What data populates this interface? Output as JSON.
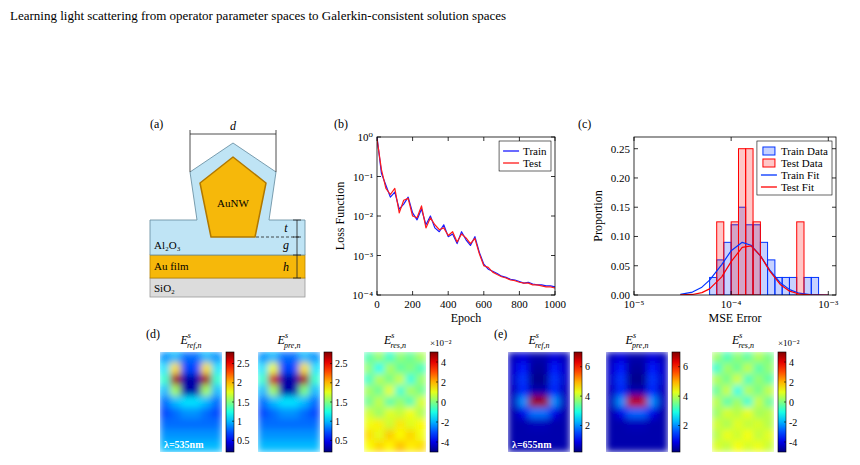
{
  "header": {
    "title": "Learning light scattering from operator parameter spaces to Galerkin-consistent solution spaces"
  },
  "panel_labels": [
    "(a)",
    "(b)",
    "(c)",
    "(d)",
    "(e)"
  ],
  "schematic": {
    "labels": {
      "d": "d",
      "nanowire": "AuNW",
      "t": "t",
      "g": "g",
      "spacer": "Al₂O₃",
      "h": "h",
      "film": "Au film",
      "substrate": "SiO₂"
    }
  },
  "chart_data": [
    {
      "type": "line",
      "xlabel": "Epoch",
      "ylabel": "Loss Function",
      "x": [
        0,
        25,
        50,
        75,
        100,
        125,
        150,
        175,
        200,
        225,
        250,
        275,
        300,
        325,
        350,
        375,
        400,
        425,
        450,
        475,
        500,
        525,
        550,
        575,
        600,
        625,
        650,
        675,
        700,
        725,
        750,
        775,
        800,
        825,
        850,
        875,
        900,
        925,
        950,
        975,
        1000
      ],
      "series": [
        {
          "name": "Train",
          "color": "#1a1aff",
          "values": [
            1,
            0.12,
            0.06,
            0.03,
            0.04,
            0.015,
            0.02,
            0.03,
            0.012,
            0.008,
            0.015,
            0.006,
            0.01,
            0.005,
            0.004,
            0.006,
            0.003,
            0.0035,
            0.002,
            0.004,
            0.0025,
            0.0018,
            0.003,
            0.0012,
            0.0006,
            0.00045,
            0.0004,
            0.00035,
            0.0003,
            0.00028,
            0.00025,
            0.00024,
            0.00022,
            0.0002,
            0.00021,
            0.00019,
            0.00018,
            0.00018,
            0.00017,
            0.00017,
            0.00016
          ]
        },
        {
          "name": "Test",
          "color": "#ff1a1a",
          "values": [
            0.9,
            0.15,
            0.05,
            0.035,
            0.05,
            0.012,
            0.025,
            0.028,
            0.01,
            0.009,
            0.018,
            0.005,
            0.009,
            0.006,
            0.0045,
            0.005,
            0.0032,
            0.004,
            0.0022,
            0.0035,
            0.0028,
            0.002,
            0.0027,
            0.0011,
            0.00055,
            0.0005,
            0.00038,
            0.00033,
            0.00029,
            0.00027,
            0.00024,
            0.00023,
            0.00021,
            0.0002,
            0.0002,
            0.00018,
            0.00018,
            0.00017,
            0.00016,
            0.00016,
            0.00015
          ]
        }
      ],
      "xlim": [
        0,
        1000
      ],
      "xticks": [
        0,
        200,
        400,
        600,
        800,
        1000
      ],
      "ylim": [
        0.0001,
        1
      ],
      "yticks": [
        {
          "value": 0.0001,
          "label": "10⁻⁴"
        },
        {
          "value": 0.001,
          "label": "10⁻³"
        },
        {
          "value": 0.01,
          "label": "10⁻²"
        },
        {
          "value": 0.1,
          "label": "10⁻¹"
        },
        {
          "value": 1,
          "label": "10⁰"
        }
      ],
      "log": "y",
      "grid": false,
      "legend": "top-right"
    },
    {
      "type": "histogram",
      "xlabel": "MSE Error",
      "ylabel": "Proportion",
      "bins": [
        6e-05,
        7.1e-05,
        8.4e-05,
        0.0001,
        0.000119,
        0.000141,
        0.000168,
        0.0002,
        0.000237,
        0.000282,
        0.000335,
        0.000398,
        0.000473,
        0.000562,
        0.000668,
        0.000794,
        0.000944
      ],
      "series": [
        {
          "name": "Train Data",
          "type": "bar",
          "color": "#0033ff",
          "values": [
            0.03,
            0.06,
            0.09,
            0.12,
            0.15,
            0.12,
            0.12,
            0.09,
            0.06,
            0.03,
            0.03,
            0.03,
            0,
            0.03,
            0.03,
            0
          ]
        },
        {
          "name": "Test Data",
          "type": "bar",
          "color": "#ff0000",
          "values": [
            0,
            0.125,
            0,
            0.125,
            0.25,
            0.25,
            0.125,
            0,
            0,
            0,
            0,
            0,
            0.125,
            0,
            0,
            0
          ]
        },
        {
          "name": "Train Fit",
          "type": "line",
          "color": "#0033ff",
          "x": [
            3e-05,
            4e-05,
            5e-05,
            6e-05,
            8e-05,
            0.0001,
            0.00013,
            0.00016,
            0.0002,
            0.00025,
            0.00032,
            0.0004,
            0.0005,
            0.00065,
            0.0008,
            0.001
          ],
          "values": [
            0.0011,
            0.005,
            0.0134,
            0.0254,
            0.052,
            0.0756,
            0.09,
            0.085,
            0.0668,
            0.0424,
            0.021,
            0.0092,
            0.0031,
            0.0007,
            0.0002,
            0
          ]
        },
        {
          "name": "Test Fit",
          "type": "line",
          "color": "#ff0000",
          "x": [
            3e-05,
            4e-05,
            5e-05,
            6e-05,
            8e-05,
            0.0001,
            0.00013,
            0.00016,
            0.0002,
            0.00025,
            0.00032,
            0.0004,
            0.0005,
            0.00065,
            0.0008,
            0.001
          ],
          "values": [
            0.0001,
            0.0009,
            0.004,
            0.0104,
            0.031,
            0.057,
            0.0814,
            0.084,
            0.0673,
            0.0408,
            0.018,
            0.0066,
            0.0017,
            0.0003,
            0,
            0
          ]
        }
      ],
      "xlim": [
        1e-05,
        0.0012
      ],
      "xticks": [
        {
          "value": 1e-05,
          "label": "10⁻⁵"
        },
        {
          "value": 0.0001,
          "label": "10⁻⁴"
        },
        {
          "value": 0.001,
          "label": "10⁻³"
        }
      ],
      "ylim": [
        0,
        0.27
      ],
      "yticks": [
        {
          "value": 0,
          "label": "0.00"
        },
        0.05,
        {
          "value": 0.1,
          "label": "0.10"
        },
        0.15,
        {
          "value": 0.2,
          "label": "0.20"
        },
        0.25
      ],
      "log": "x",
      "grid": false,
      "legend": "top-right"
    }
  ],
  "field_maps": [
    {
      "wavelength_label": "λ=535nm",
      "maps": [
        {
          "title": {
            "base": "E",
            "sup": "s",
            "sub": "ref,n"
          },
          "cells": [
            [
              0.9,
              1.0,
              0.8,
              0.8,
              1.0,
              0.9
            ],
            [
              1.1,
              1.9,
              0.7,
              0.7,
              1.9,
              1.1
            ],
            [
              1.3,
              2.7,
              0.3,
              0.3,
              2.7,
              1.3
            ],
            [
              1.0,
              1.6,
              0.3,
              0.3,
              1.6,
              1.0
            ],
            [
              0.8,
              1.0,
              1.1,
              1.1,
              1.0,
              0.8
            ],
            [
              0.7,
              0.8,
              0.9,
              0.9,
              0.8,
              0.7
            ],
            [
              0.8,
              0.8,
              0.8,
              0.8,
              0.8,
              0.8
            ],
            [
              0.9,
              0.9,
              0.9,
              0.9,
              0.9,
              0.9
            ],
            [
              1.0,
              1.0,
              1.0,
              1.0,
              1.0,
              1.0
            ]
          ],
          "colorbar": {
            "range": [
              0.2,
              2.8
            ],
            "ticks": [
              0.5,
              1,
              1.5,
              2,
              2.5
            ]
          }
        },
        {
          "title": {
            "base": "E",
            "sup": "s",
            "sub": "pre,n"
          },
          "cells": [
            [
              0.9,
              1.0,
              0.8,
              0.8,
              1.0,
              0.9
            ],
            [
              1.1,
              1.8,
              0.7,
              0.7,
              1.9,
              1.1
            ],
            [
              1.3,
              2.6,
              0.3,
              0.3,
              2.7,
              1.3
            ],
            [
              1.0,
              1.6,
              0.3,
              0.3,
              1.5,
              1.0
            ],
            [
              0.8,
              1.0,
              1.1,
              1.1,
              1.0,
              0.8
            ],
            [
              0.7,
              0.8,
              0.9,
              0.9,
              0.8,
              0.7
            ],
            [
              0.8,
              0.8,
              0.8,
              0.8,
              0.8,
              0.8
            ],
            [
              0.9,
              0.9,
              0.9,
              0.9,
              0.9,
              0.9
            ],
            [
              1.0,
              1.0,
              1.0,
              1.0,
              1.0,
              1.0
            ]
          ],
          "colorbar": {
            "range": [
              0.2,
              2.8
            ],
            "ticks": [
              0.5,
              1,
              1.5,
              2,
              2.5
            ]
          }
        },
        {
          "title": {
            "base": "E",
            "sup": "s",
            "sub": "res,n"
          },
          "cells": [
            [
              -0.5,
              0.3,
              -0.8,
              0.2,
              -0.3,
              0.4
            ],
            [
              0.2,
              -1.2,
              0.5,
              -0.4,
              0.1,
              -0.6
            ],
            [
              -0.7,
              0.6,
              -0.2,
              0.8,
              -1.0,
              0.3
            ],
            [
              0.4,
              -0.3,
              1.1,
              -0.9,
              0.5,
              -0.2
            ],
            [
              -0.2,
              0.7,
              -0.5,
              0.3,
              -0.6,
              0.9
            ],
            [
              0.8,
              0.2,
              1.0,
              0.6,
              1.2,
              0.4
            ],
            [
              1.1,
              1.4,
              0.7,
              1.5,
              0.9,
              1.3
            ],
            [
              1.6,
              1.0,
              1.8,
              1.2,
              1.7,
              1.1
            ],
            [
              1.2,
              1.7,
              1.3,
              1.9,
              1.4,
              1.6
            ]
          ],
          "colorbar": {
            "range": [
              -5,
              5
            ],
            "ticks": [
              -4,
              -2,
              0,
              2,
              4
            ],
            "multiplier": "×10⁻²"
          }
        }
      ]
    },
    {
      "wavelength_label": "λ=655nm",
      "maps": [
        {
          "title": {
            "base": "E",
            "sup": "s",
            "sub": "ref,n"
          },
          "cells": [
            [
              0.6,
              0.8,
              0.5,
              0.5,
              0.8,
              0.6
            ],
            [
              0.7,
              1.2,
              0.4,
              0.4,
              1.2,
              0.7
            ],
            [
              0.7,
              1.4,
              0.3,
              0.3,
              1.4,
              0.7
            ],
            [
              0.6,
              1.3,
              0.5,
              0.5,
              1.3,
              0.6
            ],
            [
              0.6,
              2.0,
              6.8,
              6.8,
              2.0,
              0.6
            ],
            [
              0.5,
              0.9,
              1.8,
              1.8,
              0.9,
              0.5
            ],
            [
              0.5,
              0.5,
              0.6,
              0.6,
              0.5,
              0.5
            ],
            [
              0.5,
              0.5,
              0.5,
              0.5,
              0.5,
              0.5
            ],
            [
              0.5,
              0.5,
              0.5,
              0.5,
              0.5,
              0.5
            ]
          ],
          "colorbar": {
            "range": [
              0.2,
              7
            ],
            "ticks": [
              2,
              4,
              6
            ]
          }
        },
        {
          "title": {
            "base": "E",
            "sup": "s",
            "sub": "pre,n"
          },
          "cells": [
            [
              0.6,
              0.8,
              0.5,
              0.5,
              0.8,
              0.6
            ],
            [
              0.7,
              1.2,
              0.4,
              0.4,
              1.2,
              0.7
            ],
            [
              0.7,
              1.4,
              0.3,
              0.3,
              1.4,
              0.7
            ],
            [
              0.6,
              1.3,
              0.5,
              0.5,
              1.3,
              0.6
            ],
            [
              0.6,
              2.0,
              6.6,
              6.6,
              2.0,
              0.6
            ],
            [
              0.5,
              0.9,
              1.7,
              1.7,
              0.9,
              0.5
            ],
            [
              0.5,
              0.5,
              0.6,
              0.6,
              0.5,
              0.5
            ],
            [
              0.5,
              0.5,
              0.5,
              0.5,
              0.5,
              0.5
            ],
            [
              0.5,
              0.5,
              0.5,
              0.5,
              0.5,
              0.5
            ]
          ],
          "colorbar": {
            "range": [
              0.2,
              7
            ],
            "ticks": [
              2,
              4,
              6
            ]
          }
        },
        {
          "title": {
            "base": "E",
            "sup": "s",
            "sub": "res,n"
          },
          "cells": [
            [
              0.3,
              -0.6,
              0.2,
              -0.4,
              0.5,
              -0.1
            ],
            [
              -0.8,
              0.4,
              -0.3,
              0.7,
              -0.5,
              0.2
            ],
            [
              0.5,
              -0.2,
              0.9,
              -0.7,
              0.3,
              -0.4
            ],
            [
              -0.3,
              0.8,
              -1.1,
              0.6,
              -0.2,
              0.7
            ],
            [
              0.6,
              -0.5,
              0.4,
              -0.9,
              0.8,
              -0.3
            ],
            [
              0.2,
              0.9,
              0.5,
              1.1,
              0.3,
              0.6
            ],
            [
              0.8,
              0.4,
              1.0,
              0.6,
              0.9,
              0.5
            ],
            [
              0.5,
              1.1,
              0.7,
              1.2,
              0.6,
              1.0
            ],
            [
              0.9,
              0.6,
              1.2,
              0.8,
              1.1,
              0.7
            ]
          ],
          "colorbar": {
            "range": [
              -5,
              5
            ],
            "ticks": [
              -4,
              -2,
              0,
              2,
              4
            ],
            "multiplier": "×10⁻²"
          }
        }
      ]
    }
  ]
}
